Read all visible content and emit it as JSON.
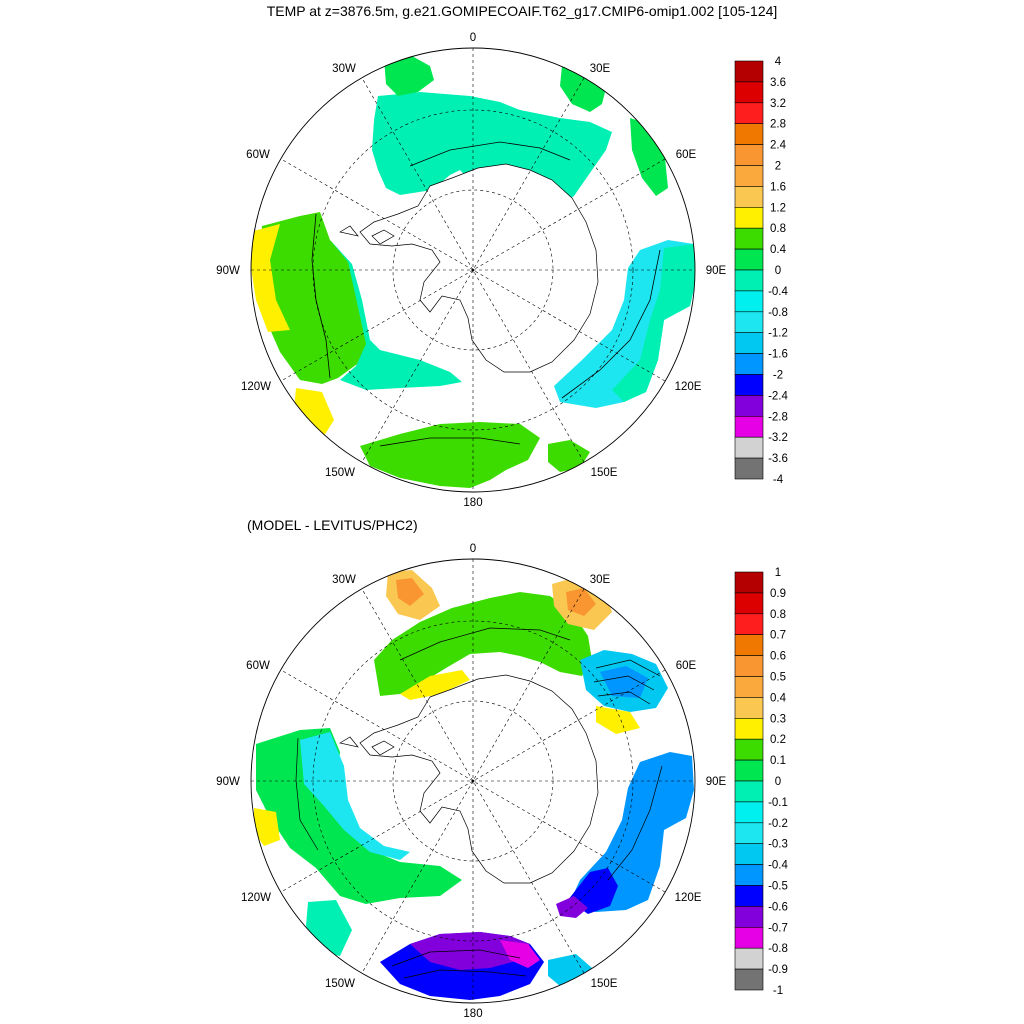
{
  "panels": [
    {
      "title": "TEMP at z=3876.5m, g.e21.GOMIPECOAIF.T62_g17.CMIP6-omip1.002 [105-124]",
      "lon_labels": [
        "0",
        "30E",
        "60E",
        "90E",
        "120E",
        "150E",
        "180",
        "150W",
        "120W",
        "90W",
        "60W",
        "30W"
      ],
      "colorbar": {
        "levels": [
          "4",
          "3.6",
          "3.2",
          "2.8",
          "2.4",
          "2",
          "1.6",
          "1.2",
          "0.8",
          "0.4",
          "0",
          "-0.4",
          "-0.8",
          "-1.2",
          "-1.6",
          "-2",
          "-2.4",
          "-2.8",
          "-3.2",
          "-3.6",
          "-4"
        ],
        "colors": [
          "#b40000",
          "#dc0000",
          "#ff1e1e",
          "#f07800",
          "#fa9632",
          "#faaa3c",
          "#fac850",
          "#fff000",
          "#3cdc00",
          "#00e650",
          "#00f0b4",
          "#00f0f0",
          "#1ee6f0",
          "#00c8f0",
          "#0096ff",
          "#0000ff",
          "#8200dc",
          "#e600e6",
          "#d2d2d2",
          "#737373"
        ]
      }
    },
    {
      "title": "(MODEL - LEVITUS/PHC2)",
      "lon_labels": [
        "0",
        "30E",
        "60E",
        "90E",
        "120E",
        "150E",
        "180",
        "150W",
        "120W",
        "90W",
        "60W",
        "30W"
      ],
      "colorbar": {
        "levels": [
          "1",
          "0.9",
          "0.8",
          "0.7",
          "0.6",
          "0.5",
          "0.4",
          "0.3",
          "0.2",
          "0.1",
          "0",
          "-0.1",
          "-0.2",
          "-0.3",
          "-0.4",
          "-0.5",
          "-0.6",
          "-0.7",
          "-0.8",
          "-0.9",
          "-1"
        ],
        "colors": [
          "#b40000",
          "#dc0000",
          "#ff1e1e",
          "#f07800",
          "#fa9632",
          "#faaa3c",
          "#fac850",
          "#fff000",
          "#3cdc00",
          "#00e650",
          "#00f0b4",
          "#00f0f0",
          "#1ee6f0",
          "#00c8f0",
          "#0096ff",
          "#0000ff",
          "#8200dc",
          "#e600e6",
          "#d2d2d2",
          "#737373"
        ]
      }
    }
  ]
}
